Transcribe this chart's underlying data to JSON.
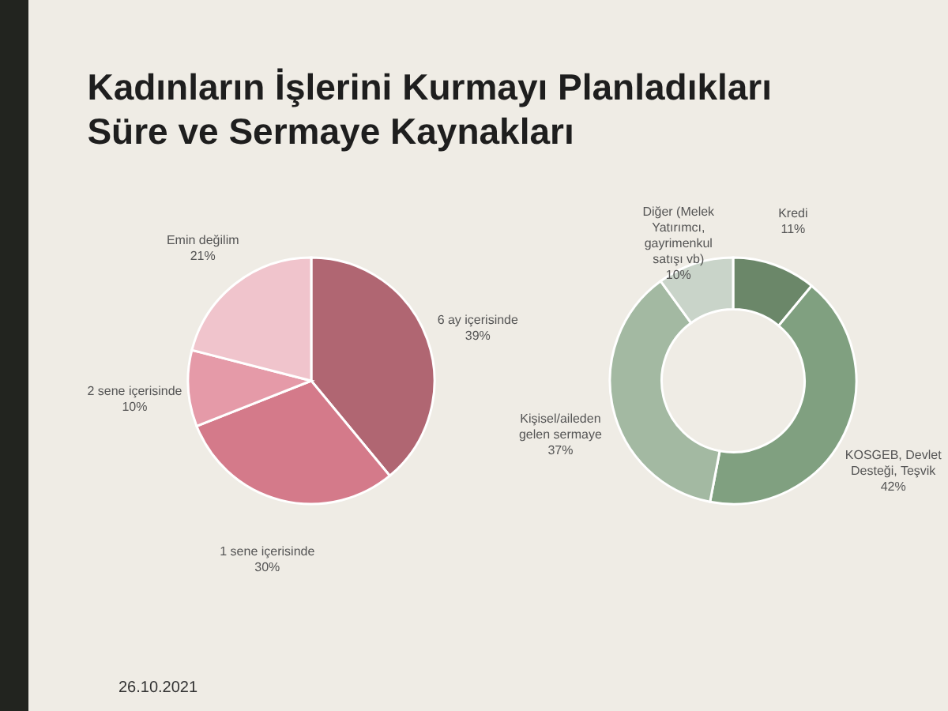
{
  "chart_data": [
    {
      "type": "pie",
      "title": "Kadınların İşlerini Kurmayı Planladıkları Süre ve Sermaye Kaynakları",
      "annotations": [
        "26.10.2021"
      ],
      "categories": [
        "6 ay içerisinde",
        "1 sene içerisinde",
        "2 sene içerisinde",
        "Emin değilim"
      ],
      "values": [
        39,
        30,
        10,
        21
      ],
      "value_labels": [
        "39%",
        "30%",
        "10%",
        "21%"
      ],
      "colors": [
        "#b06672",
        "#d47a8a",
        "#e59aa8",
        "#f0c4cc"
      ],
      "legend": false
    },
    {
      "type": "donut",
      "categories": [
        "Kredi",
        "KOSGEB, Devlet Desteği, Teşvik",
        "Kişisel/aileden gelen sermaye",
        "Diğer (Melek Yatırımcı, gayrimenkul satışı vb)"
      ],
      "values": [
        11,
        42,
        37,
        10
      ],
      "value_labels": [
        "11%",
        "42%",
        "37%",
        "10%"
      ],
      "colors": [
        "#6b8769",
        "#80a080",
        "#a3b9a2",
        "#c9d4c9"
      ],
      "legend": false
    }
  ]
}
